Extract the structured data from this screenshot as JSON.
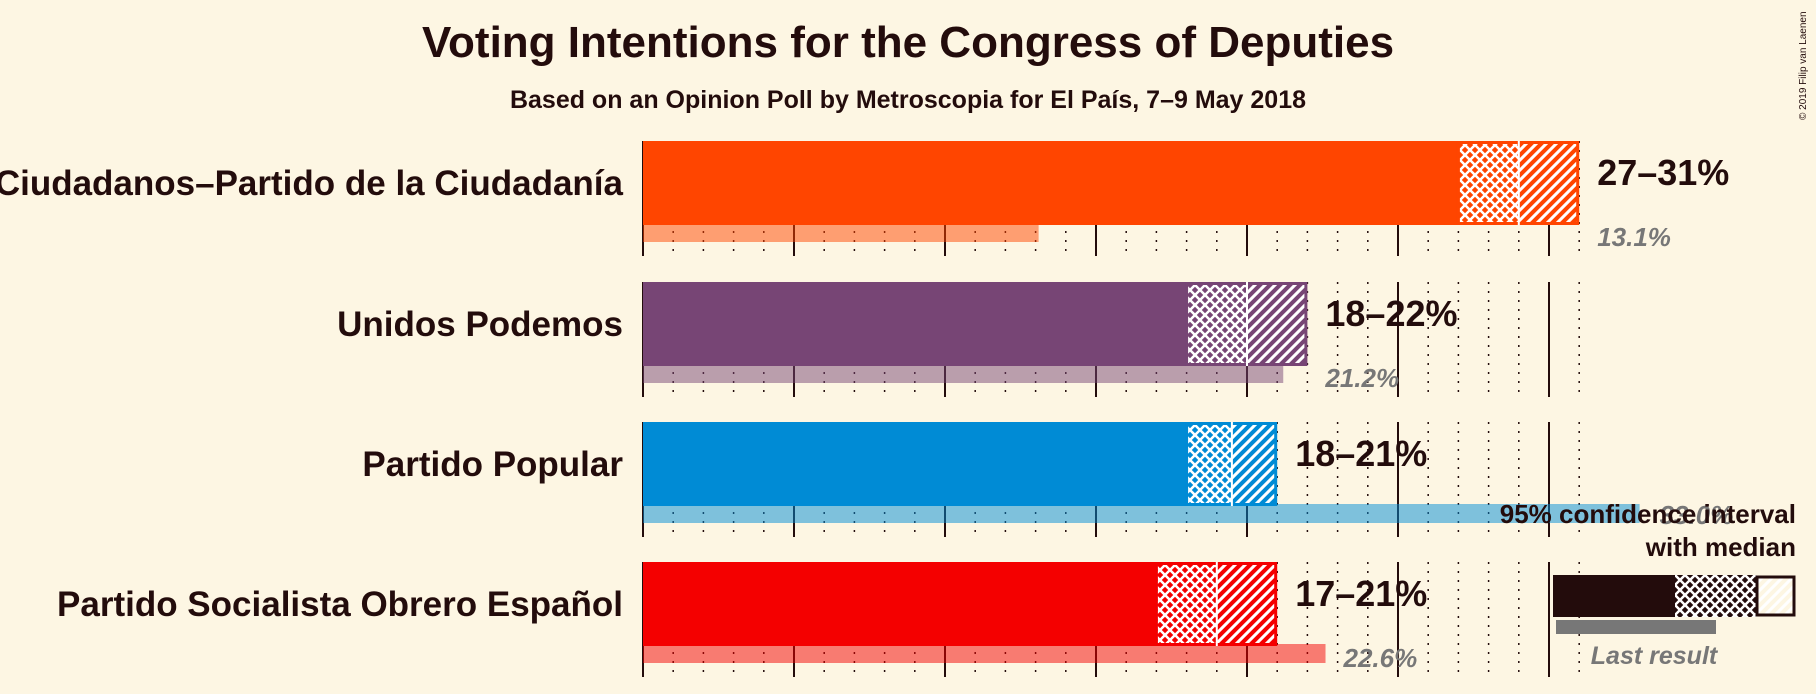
{
  "title": "Voting Intentions for the Congress of Deputies",
  "subtitle": "Based on an Opinion Poll by Metroscopia for El País, 7–9 May 2018",
  "copyright": "© 2019 Filip van Laenen",
  "legend": {
    "ci_label_line1": "95% confidence interval",
    "ci_label_line2": "with median",
    "last_result_label": "Last result"
  },
  "chart_data": {
    "type": "bar",
    "orientation": "horizontal",
    "xlim": [
      0,
      31.5
    ],
    "grid": true,
    "categories": [
      "Ciudadanos–Partido de la Ciudadanía",
      "Unidos Podemos",
      "Partido Popular",
      "Partido Socialista Obrero Español"
    ],
    "colors": [
      "#ff4500",
      "#774575",
      "#008bd5",
      "#f40000"
    ],
    "series": [
      {
        "name": "95% confidence interval",
        "values": [
          {
            "low": 27,
            "median": 29,
            "high": 31,
            "label": "27–31%"
          },
          {
            "low": 18,
            "median": 20,
            "high": 22,
            "label": "18–22%"
          },
          {
            "low": 18,
            "median": 19.5,
            "high": 21,
            "label": "18–21%"
          },
          {
            "low": 17,
            "median": 19,
            "high": 21,
            "label": "17–21%"
          }
        ]
      },
      {
        "name": "Last result",
        "values": [
          13.1,
          21.2,
          33.0,
          22.6
        ],
        "labels": [
          "13.1%",
          "21.2%",
          "33.0%",
          "22.6%"
        ]
      }
    ]
  }
}
